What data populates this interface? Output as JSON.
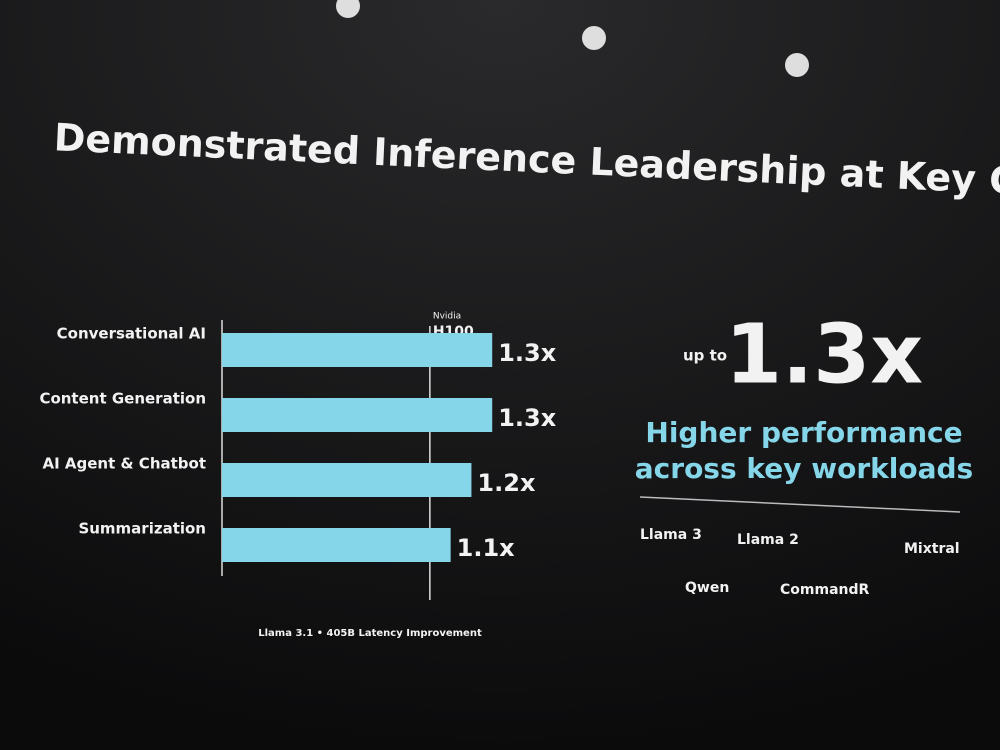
{
  "chart_data": {
    "type": "bar",
    "orientation": "horizontal",
    "title": "Demonstrated Inference Leadership at Key Customers",
    "categories": [
      "Conversational AI",
      "Content Generation",
      "AI Agent & Chatbot",
      "Summarization"
    ],
    "values": [
      1.3,
      1.3,
      1.2,
      1.1
    ],
    "value_labels": [
      "1.3x",
      "1.3x",
      "1.2x",
      "1.1x"
    ],
    "color": "#86d6ea",
    "xlim": [
      0,
      1.4
    ],
    "reference": {
      "value": 1,
      "label": "Nvidia",
      "sublabel": "H100"
    },
    "footnote": "Llama 3.1  •  405B Latency Improvement"
  },
  "callout": {
    "prefix": "up to",
    "figure": "1.3x",
    "line1": "Higher performance",
    "line2": "across key workloads"
  },
  "models": [
    "Llama 3",
    "Llama 2",
    "Mixtral",
    "Qwen",
    "CommandR"
  ]
}
